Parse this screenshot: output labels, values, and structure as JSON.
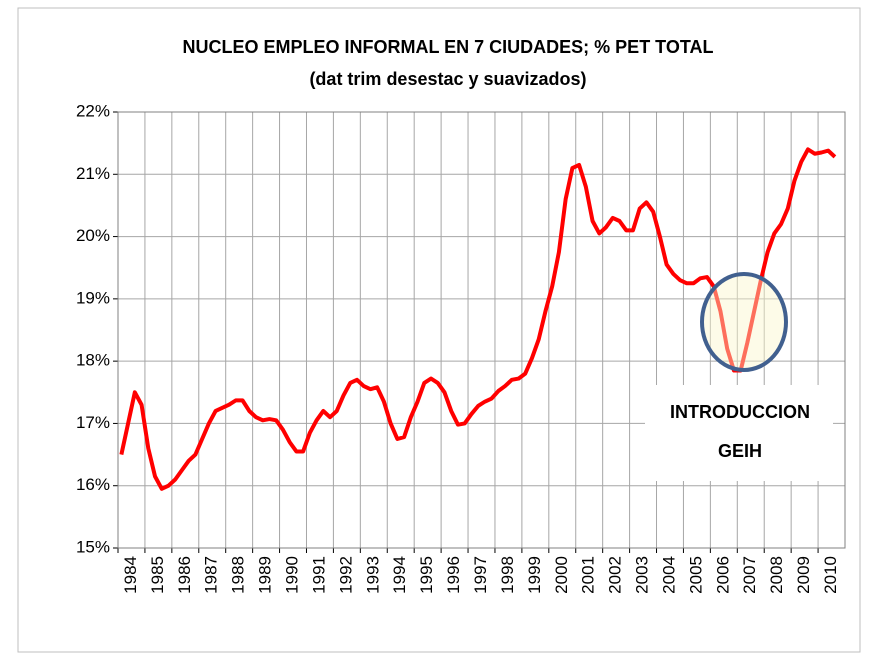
{
  "chart_data": {
    "type": "line",
    "title": "NUCLEO EMPLEO INFORMAL EN 7 CIUDADES; % PET TOTAL",
    "subtitle": "(dat trim desestac y suavizados)",
    "annotation": [
      "INTRODUCCION",
      "GEIH"
    ],
    "xlim": [
      1984,
      2011
    ],
    "xticks": [
      1984,
      1985,
      1986,
      1987,
      1988,
      1989,
      1990,
      1991,
      1992,
      1993,
      1994,
      1995,
      1996,
      1997,
      1998,
      1999,
      2000,
      2001,
      2002,
      2003,
      2004,
      2005,
      2006,
      2007,
      2008,
      2009,
      2010
    ],
    "ylim": [
      15,
      22
    ],
    "yticks": [
      {
        "value": 15,
        "label": "15%"
      },
      {
        "value": 16,
        "label": "16%"
      },
      {
        "value": 17,
        "label": "17%"
      },
      {
        "value": 18,
        "label": "18%"
      },
      {
        "value": 19,
        "label": "19%"
      },
      {
        "value": 20,
        "label": "20%"
      },
      {
        "value": 21,
        "label": "21%"
      },
      {
        "value": 22,
        "label": "22%"
      }
    ],
    "grid": true,
    "x": [
      1984.125,
      1984.375,
      1984.625,
      1984.875,
      1985.125,
      1985.375,
      1985.625,
      1985.875,
      1986.125,
      1986.375,
      1986.625,
      1986.875,
      1987.125,
      1987.375,
      1987.625,
      1987.875,
      1988.125,
      1988.375,
      1988.625,
      1988.875,
      1989.125,
      1989.375,
      1989.625,
      1989.875,
      1990.125,
      1990.375,
      1990.625,
      1990.875,
      1991.125,
      1991.375,
      1991.625,
      1991.875,
      1992.125,
      1992.375,
      1992.625,
      1992.875,
      1993.125,
      1993.375,
      1993.625,
      1993.875,
      1994.125,
      1994.375,
      1994.625,
      1994.875,
      1995.125,
      1995.375,
      1995.625,
      1995.875,
      1996.125,
      1996.375,
      1996.625,
      1996.875,
      1997.125,
      1997.375,
      1997.625,
      1997.875,
      1998.125,
      1998.375,
      1998.625,
      1998.875,
      1999.125,
      1999.375,
      1999.625,
      1999.875,
      2000.125,
      2000.375,
      2000.625,
      2000.875,
      2001.125,
      2001.375,
      2001.625,
      2001.875,
      2002.125,
      2002.375,
      2002.625,
      2002.875,
      2003.125,
      2003.375,
      2003.625,
      2003.875,
      2004.125,
      2004.375,
      2004.625,
      2004.875,
      2005.125,
      2005.375,
      2005.625,
      2005.875,
      2006.125,
      2006.375,
      2006.625,
      2006.875,
      2007.125,
      2007.375,
      2007.625,
      2007.875,
      2008.125,
      2008.375,
      2008.625,
      2008.875,
      2009.125,
      2009.375,
      2009.625,
      2009.875,
      2010.125,
      2010.375,
      2010.625
    ],
    "series": [
      {
        "color": "#ff0000",
        "values": [
          16.5,
          17.0,
          17.5,
          17.3,
          16.6,
          16.15,
          15.95,
          16.0,
          16.1,
          16.25,
          16.4,
          16.5,
          16.75,
          17.0,
          17.2,
          17.25,
          17.3,
          17.37,
          17.37,
          17.2,
          17.1,
          17.05,
          17.07,
          17.05,
          16.9,
          16.7,
          16.55,
          16.55,
          16.85,
          17.05,
          17.2,
          17.1,
          17.2,
          17.45,
          17.65,
          17.7,
          17.6,
          17.55,
          17.58,
          17.35,
          17.0,
          16.75,
          16.78,
          17.1,
          17.35,
          17.65,
          17.72,
          17.65,
          17.5,
          17.2,
          16.98,
          17.0,
          17.15,
          17.28,
          17.35,
          17.4,
          17.52,
          17.6,
          17.7,
          17.72,
          17.8,
          18.05,
          18.35,
          18.8,
          19.2,
          19.75,
          20.6,
          21.1,
          21.15,
          20.8,
          20.25,
          20.05,
          20.15,
          20.3,
          20.25,
          20.1,
          20.1,
          20.45,
          20.55,
          20.4,
          20.0,
          19.55,
          19.4,
          19.3,
          19.25,
          19.25,
          19.33,
          19.35,
          19.2,
          18.8,
          18.2,
          17.85,
          17.85,
          18.3,
          18.8,
          19.3,
          19.75,
          20.05,
          20.2,
          20.45,
          20.9,
          21.2,
          21.4,
          21.33,
          21.35,
          21.38,
          21.28
        ]
      }
    ]
  }
}
